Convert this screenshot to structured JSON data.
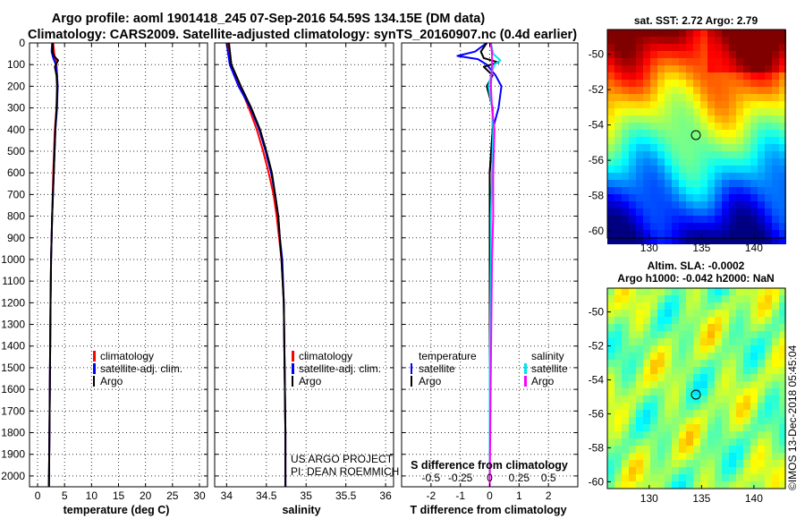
{
  "title_line1": "Argo profile: aoml 1901418_245 07-Sep-2016 54.59S 134.15E (DM data)",
  "title_line2": "Climatology: CARS2009. Satellite-adjusted climatology: synTS_20160907.nc (0.4d earlier)",
  "legend": {
    "climatology": "climatology",
    "satellite_adj": "satellite-adj. clim.",
    "argo": "Argo",
    "temperature": "temperature",
    "salinity": "salinity",
    "satellite": "satellite"
  },
  "credits": {
    "line1": "US ARGO PROJECT",
    "line2": "PI: DEAN ROEMMICH"
  },
  "watermark": "©IMOS 13-Dec-2018 05:45:04",
  "maps": {
    "sst": {
      "title": "sat. SST: 2.72 Argo: 2.79"
    },
    "sla": {
      "title1": "Altim. SLA: -0.0002",
      "title2": "Argo h1000: -0.042 h2000: NaN"
    },
    "xticks": [
      130,
      135,
      140
    ],
    "yticks": [
      -50,
      -52,
      -54,
      -56,
      -58,
      -60
    ],
    "argo_position": {
      "lon": 134.15,
      "lat": -54.59
    }
  },
  "colors": {
    "climatology": "#ff0000",
    "satellite": "#0000ff",
    "argo": "#000000",
    "salinity_sat": "#00e5ee",
    "salinity_argo": "#ff00ff"
  },
  "chart_data": [
    {
      "type": "line",
      "xlabel": "temperature (deg C)",
      "ylabel": "",
      "xlim": [
        -1.5,
        31.5
      ],
      "ylim": [
        2050,
        0
      ],
      "xticks": [
        0,
        5,
        10,
        15,
        20,
        25,
        30
      ],
      "yticks": [
        0,
        100,
        200,
        300,
        400,
        500,
        600,
        700,
        800,
        900,
        1000,
        1100,
        1200,
        1300,
        1400,
        1500,
        1600,
        1700,
        1800,
        1900,
        2000
      ],
      "series": [
        {
          "name": "climatology",
          "color": "#ff0000",
          "depth": [
            0,
            50,
            100,
            200,
            300,
            400,
            600,
            800,
            1000,
            1200,
            1500,
            1800,
            2050
          ],
          "values": [
            2.9,
            3.1,
            3.5,
            3.7,
            3.5,
            3.2,
            2.9,
            2.7,
            2.5,
            2.4,
            2.3,
            2.2,
            2.1
          ]
        },
        {
          "name": "satellite-adj. clim.",
          "color": "#0000ff",
          "depth": [
            0,
            40,
            70,
            100,
            150,
            200,
            300,
            400,
            600,
            800,
            1000,
            1200,
            1500,
            1800,
            2050
          ],
          "values": [
            2.7,
            2.6,
            2.9,
            3.4,
            3.6,
            3.7,
            3.6,
            3.3,
            3.0,
            2.7,
            2.5,
            2.4,
            2.3,
            2.2,
            2.1
          ]
        },
        {
          "name": "Argo",
          "color": "#000000",
          "depth": [
            0,
            40,
            60,
            80,
            110,
            150,
            200,
            300,
            400,
            600,
            800,
            1000,
            1200,
            1500,
            1800,
            2050
          ],
          "values": [
            2.8,
            2.8,
            3.0,
            3.8,
            3.2,
            3.5,
            3.6,
            3.5,
            3.3,
            3.0,
            2.7,
            2.5,
            2.4,
            2.3,
            2.2,
            2.1
          ]
        }
      ]
    },
    {
      "type": "line",
      "xlabel": "salinity",
      "ylabel": "",
      "xlim": [
        33.85,
        36.1
      ],
      "ylim": [
        2050,
        0
      ],
      "xticks": [
        34,
        34.5,
        35,
        35.5,
        36
      ],
      "xtick_labels": [
        "34",
        "34.5",
        "35",
        "35.5",
        "36"
      ],
      "series": [
        {
          "name": "climatology",
          "color": "#ff0000",
          "depth": [
            0,
            100,
            200,
            300,
            400,
            500,
            600,
            700,
            800,
            900,
            1000,
            1200,
            1500,
            1800,
            2050
          ],
          "values": [
            34.02,
            34.05,
            34.17,
            34.28,
            34.38,
            34.46,
            34.53,
            34.59,
            34.63,
            34.66,
            34.69,
            34.72,
            34.73,
            34.74,
            34.74
          ]
        },
        {
          "name": "satellite-adj. clim.",
          "color": "#0000ff",
          "depth": [
            0,
            100,
            200,
            300,
            400,
            500,
            600,
            700,
            800,
            900,
            1000,
            1200,
            1500,
            1800,
            2050
          ],
          "values": [
            34.0,
            34.04,
            34.15,
            34.3,
            34.41,
            34.49,
            34.56,
            34.61,
            34.65,
            34.67,
            34.7,
            34.72,
            34.73,
            34.74,
            34.74
          ]
        },
        {
          "name": "Argo",
          "color": "#000000",
          "depth": [
            0,
            100,
            200,
            300,
            400,
            500,
            600,
            700,
            800,
            900,
            1000,
            1200,
            1500,
            1800,
            2050
          ],
          "values": [
            34.03,
            34.06,
            34.18,
            34.31,
            34.42,
            34.5,
            34.57,
            34.61,
            34.65,
            34.67,
            34.69,
            34.72,
            34.73,
            34.74,
            34.74
          ]
        }
      ]
    },
    {
      "type": "line",
      "xlabel": "T difference from climatology",
      "ylabel": "",
      "xlim": [
        -3,
        3
      ],
      "ylim": [
        2050,
        0
      ],
      "xticks": [
        -2,
        -1,
        0,
        1,
        2
      ],
      "secondary_xlabel": "S difference from climatology",
      "secondary_xticks": [
        -0.5,
        -0.25,
        0,
        0.25,
        0.5
      ],
      "secondary_xtick_labels": [
        "-0.5",
        "-0.25",
        "0",
        "0.25",
        "0.5"
      ],
      "series": [
        {
          "name": "temperature satellite",
          "color": "#0000ff",
          "depth": [
            0,
            40,
            60,
            75,
            100,
            150,
            200,
            300,
            400,
            600,
            800,
            1000,
            1500,
            2050
          ],
          "values": [
            -0.1,
            -0.5,
            -1.1,
            -0.4,
            -0.1,
            0.2,
            0.4,
            0.3,
            0.1,
            0.0,
            0.0,
            0.0,
            0.0,
            0.0
          ]
        },
        {
          "name": "temperature Argo",
          "color": "#000000",
          "depth": [
            0,
            40,
            70,
            90,
            110,
            150,
            200,
            300,
            400,
            600,
            800,
            1000,
            1500,
            2050
          ],
          "values": [
            -0.1,
            -0.3,
            -0.2,
            0.3,
            -0.2,
            0.1,
            -0.1,
            0.1,
            0.1,
            0.0,
            0.0,
            0.0,
            0.0,
            0.0
          ]
        },
        {
          "name": "salinity satellite",
          "color": "#00e5ee",
          "depth": [
            0,
            50,
            80,
            100,
            150,
            200,
            300,
            400,
            600,
            800,
            1000,
            1500,
            2050
          ],
          "values": [
            0.01,
            0.03,
            0.09,
            0.04,
            0.01,
            -0.01,
            0.02,
            0.03,
            0.02,
            0.01,
            0.01,
            0.0,
            0.0
          ]
        },
        {
          "name": "salinity Argo",
          "color": "#ff00ff",
          "depth": [
            0,
            50,
            100,
            200,
            300,
            400,
            600,
            800,
            1000,
            1500,
            2050
          ],
          "values": [
            0.01,
            0.02,
            0.02,
            0.01,
            0.02,
            0.04,
            0.03,
            0.03,
            0.02,
            0.01,
            0.0
          ]
        }
      ]
    }
  ]
}
